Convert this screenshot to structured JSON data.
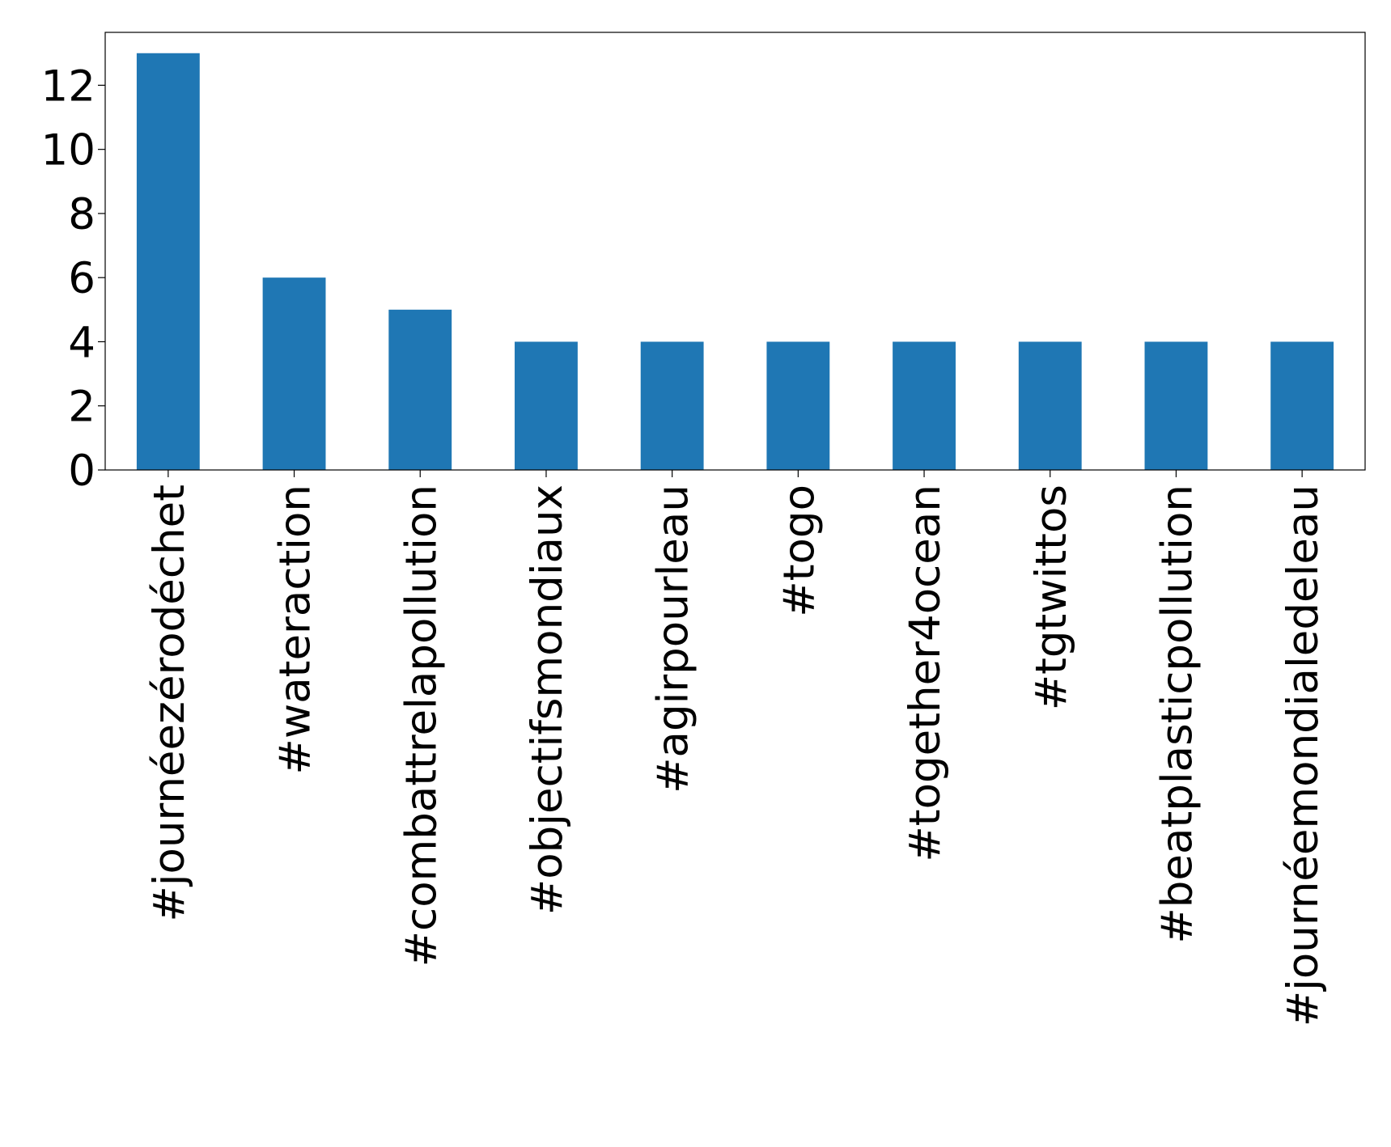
{
  "chart_data": {
    "type": "bar",
    "categories": [
      "#journéezérodéchet",
      "#wateraction",
      "#combattrelapollution",
      "#objectifsmondiaux",
      "#agirpourleau",
      "#togo",
      "#together4ocean",
      "#tgtwittos",
      "#beatplasticpollution",
      "#journéemondialedeleau"
    ],
    "values": [
      13,
      6,
      5,
      4,
      4,
      4,
      4,
      4,
      4,
      4
    ],
    "color": "#1f77b4",
    "ylim": [
      0,
      13.65
    ],
    "yticks": [
      0,
      2,
      4,
      6,
      8,
      10,
      12
    ],
    "grid": false
  }
}
